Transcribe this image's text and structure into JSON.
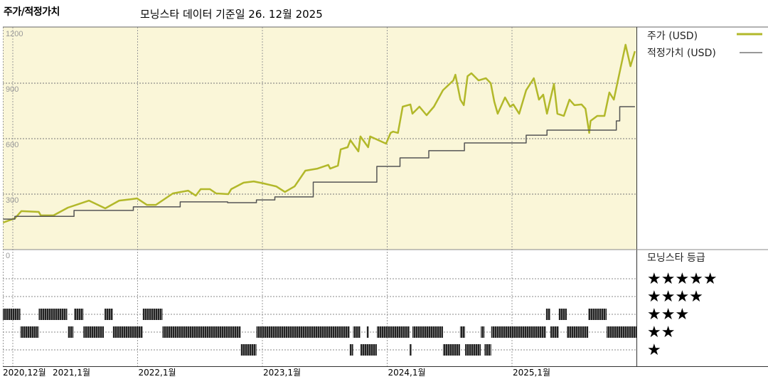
{
  "title": "주가/적정가치",
  "subtitle": "모닝스타 데이터 기준일 26. 12월 2025",
  "chart_data": [
    {
      "type": "line",
      "title": "주가/적정가치",
      "ylim": [
        0,
        1200
      ],
      "yticks": [
        "1200",
        "900",
        "600",
        "300",
        "0"
      ],
      "xticks": [
        "2020,12월",
        "2021,1월",
        "2022,1월",
        "2023,1월",
        "2024,1월",
        "2025,1월"
      ],
      "xtick_dates": [
        "2020-12-01",
        "2021-01-01",
        "2022-01-01",
        "2023-01-01",
        "2024-01-01",
        "2025-01-01"
      ],
      "grid": true,
      "background": "#faf6d8",
      "legend_placement": "right",
      "series": [
        {
          "name": "주가 (USD)",
          "color": "#b2b82a",
          "points": [
            [
              "2020-12-03",
              146
            ],
            [
              "2021-01-07",
              169
            ],
            [
              "2021-01-26",
              208
            ],
            [
              "2021-03-16",
              204
            ],
            [
              "2021-03-22",
              185
            ],
            [
              "2021-04-29",
              185
            ],
            [
              "2021-06-10",
              227
            ],
            [
              "2021-08-11",
              265
            ],
            [
              "2021-09-28",
              223
            ],
            [
              "2021-11-08",
              265
            ],
            [
              "2021-12-15",
              273
            ],
            [
              "2021-12-30",
              277
            ],
            [
              "2022-01-28",
              242
            ],
            [
              "2022-02-24",
              242
            ],
            [
              "2022-04-13",
              304
            ],
            [
              "2022-05-27",
              319
            ],
            [
              "2022-06-19",
              292
            ],
            [
              "2022-07-03",
              327
            ],
            [
              "2022-07-30",
              327
            ],
            [
              "2022-08-18",
              304
            ],
            [
              "2022-09-23",
              300
            ],
            [
              "2022-10-01",
              327
            ],
            [
              "2022-11-07",
              362
            ],
            [
              "2022-12-06",
              369
            ],
            [
              "2023-01-04",
              358
            ],
            [
              "2023-02-11",
              342
            ],
            [
              "2023-03-06",
              312
            ],
            [
              "2023-04-04",
              342
            ],
            [
              "2023-05-05",
              427
            ],
            [
              "2023-06-10",
              438
            ],
            [
              "2023-07-11",
              458
            ],
            [
              "2023-07-17",
              438
            ],
            [
              "2023-08-09",
              454
            ],
            [
              "2023-08-17",
              542
            ],
            [
              "2023-09-07",
              554
            ],
            [
              "2023-09-15",
              592
            ],
            [
              "2023-10-08",
              531
            ],
            [
              "2023-10-14",
              612
            ],
            [
              "2023-11-06",
              554
            ],
            [
              "2023-11-12",
              612
            ],
            [
              "2023-12-28",
              573
            ],
            [
              "2024-01-11",
              631
            ],
            [
              "2024-01-18",
              638
            ],
            [
              "2024-02-02",
              631
            ],
            [
              "2024-02-16",
              773
            ],
            [
              "2024-03-08",
              785
            ],
            [
              "2024-03-14",
              735
            ],
            [
              "2024-04-04",
              773
            ],
            [
              "2024-04-25",
              727
            ],
            [
              "2024-05-16",
              773
            ],
            [
              "2024-06-12",
              862
            ],
            [
              "2024-07-12",
              915
            ],
            [
              "2024-07-18",
              946
            ],
            [
              "2024-08-02",
              811
            ],
            [
              "2024-08-12",
              781
            ],
            [
              "2024-08-23",
              938
            ],
            [
              "2024-09-04",
              954
            ],
            [
              "2024-09-25",
              915
            ],
            [
              "2024-10-16",
              927
            ],
            [
              "2024-10-30",
              900
            ],
            [
              "2024-11-10",
              800
            ],
            [
              "2024-11-20",
              735
            ],
            [
              "2024-12-11",
              823
            ],
            [
              "2024-12-26",
              773
            ],
            [
              "2025-01-05",
              785
            ],
            [
              "2025-01-22",
              735
            ],
            [
              "2025-02-12",
              862
            ],
            [
              "2025-03-04",
              927
            ],
            [
              "2025-03-19",
              811
            ],
            [
              "2025-04-01",
              838
            ],
            [
              "2025-04-12",
              735
            ],
            [
              "2025-05-02",
              896
            ],
            [
              "2025-05-12",
              735
            ],
            [
              "2025-05-31",
              723
            ],
            [
              "2025-06-17",
              811
            ],
            [
              "2025-07-01",
              781
            ],
            [
              "2025-07-22",
              785
            ],
            [
              "2025-08-03",
              762
            ],
            [
              "2025-08-14",
              631
            ],
            [
              "2025-08-18",
              696
            ],
            [
              "2025-09-07",
              723
            ],
            [
              "2025-09-28",
              723
            ],
            [
              "2025-10-12",
              850
            ],
            [
              "2025-10-25",
              811
            ],
            [
              "2025-11-08",
              927
            ],
            [
              "2025-11-29",
              1108
            ],
            [
              "2025-12-13",
              992
            ],
            [
              "2025-12-26",
              1073
            ]
          ]
        },
        {
          "name": "적정가치 (USD)",
          "color": "#555555",
          "step": true,
          "points": [
            [
              "2020-12-03",
              165
            ],
            [
              "2021-01-07",
              180
            ],
            [
              "2021-06-28",
              212
            ],
            [
              "2021-12-19",
              231
            ],
            [
              "2022-05-04",
              258
            ],
            [
              "2022-09-21",
              254
            ],
            [
              "2022-12-14",
              269
            ],
            [
              "2023-02-07",
              285
            ],
            [
              "2023-05-28",
              365
            ],
            [
              "2023-12-01",
              450
            ],
            [
              "2024-02-08",
              496
            ],
            [
              "2024-05-01",
              535
            ],
            [
              "2024-08-14",
              577
            ],
            [
              "2025-02-12",
              619
            ],
            [
              "2025-04-12",
              646
            ],
            [
              "2025-11-02",
              696
            ],
            [
              "2025-11-12",
              773
            ],
            [
              "2025-12-26",
              773
            ]
          ]
        }
      ]
    },
    {
      "type": "timeline",
      "title": "모닝스타 등급",
      "rating_labels": [
        "★★★★★",
        "★★★★",
        "★★★",
        "★★",
        "★"
      ],
      "bar_color": "#333333",
      "periods": [
        [
          "2020-12-01",
          "2021-01-23",
          3
        ],
        [
          "2021-01-23",
          "2021-03-16",
          2
        ],
        [
          "2021-03-16",
          "2021-06-08",
          3
        ],
        [
          "2021-06-10",
          "2021-06-26",
          2
        ],
        [
          "2021-06-28",
          "2021-07-25",
          3
        ],
        [
          "2021-07-25",
          "2021-09-24",
          2
        ],
        [
          "2021-09-26",
          "2021-10-20",
          3
        ],
        [
          "2021-10-20",
          "2022-01-16",
          2
        ],
        [
          "2022-01-16",
          "2022-03-13",
          3
        ],
        [
          "2022-03-13",
          "2022-10-29",
          2
        ],
        [
          "2022-10-29",
          "2022-12-14",
          1
        ],
        [
          "2022-12-14",
          "2023-09-13",
          2
        ],
        [
          "2023-09-13",
          "2023-09-23",
          1
        ],
        [
          "2023-09-23",
          "2023-10-14",
          2
        ],
        [
          "2023-10-14",
          "2023-12-01",
          1
        ],
        [
          "2023-11-02",
          "2023-11-08",
          2
        ],
        [
          "2023-12-01",
          "2024-03-06",
          2
        ],
        [
          "2024-03-06",
          "2024-03-12",
          1
        ],
        [
          "2024-03-14",
          "2024-06-12",
          2
        ],
        [
          "2024-06-12",
          "2024-08-01",
          1
        ],
        [
          "2024-08-01",
          "2024-08-16",
          2
        ],
        [
          "2024-08-16",
          "2024-10-01",
          1
        ],
        [
          "2024-10-01",
          "2024-10-12",
          2
        ],
        [
          "2024-10-12",
          "2024-11-01",
          1
        ],
        [
          "2024-11-01",
          "2025-04-09",
          2
        ],
        [
          "2025-04-09",
          "2025-04-22",
          3
        ],
        [
          "2025-04-22",
          "2025-05-16",
          2
        ],
        [
          "2025-05-16",
          "2025-06-09",
          3
        ],
        [
          "2025-06-09",
          "2025-08-11",
          2
        ],
        [
          "2025-08-11",
          "2025-10-04",
          3
        ],
        [
          "2025-10-04",
          "2025-12-31",
          2
        ]
      ]
    }
  ],
  "legend": {
    "price_label": "주가 (USD)",
    "fair_value_label": "적정가치 (USD)",
    "rating_title": "모닝스타 등급",
    "stars": [
      "★★★★★",
      "★★★★",
      "★★★",
      "★★",
      "★"
    ]
  }
}
